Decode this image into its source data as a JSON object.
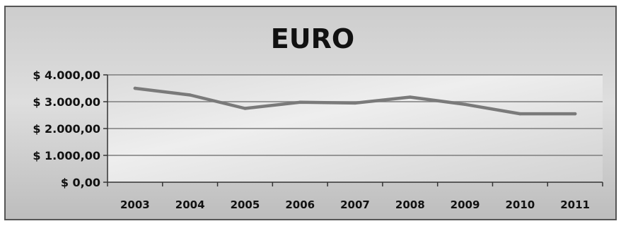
{
  "chart_data": {
    "type": "line",
    "title": "EURO",
    "xlabel": "",
    "ylabel": "",
    "categories": [
      "2003",
      "2004",
      "2005",
      "2006",
      "2007",
      "2008",
      "2009",
      "2010",
      "2011"
    ],
    "series": [
      {
        "values": [
          3500,
          3250,
          2750,
          2980,
          2950,
          3170,
          2900,
          2550,
          2550
        ]
      }
    ],
    "ylim": [
      0,
      4000
    ],
    "yticks": [
      {
        "value": 4000,
        "label": "$ 4.000,00"
      },
      {
        "value": 3000,
        "label": "$ 3.000,00"
      },
      {
        "value": 2000,
        "label": "$ 2.000,00"
      },
      {
        "value": 1000,
        "label": "$ 1.000,00"
      },
      {
        "value": 0,
        "label": "$ 0,00"
      }
    ],
    "grid": true,
    "legend": "none",
    "colors": {
      "line": "#7a7a7a",
      "grid": "#7d7d7d",
      "axis": "#333333",
      "text": "#111111"
    }
  }
}
